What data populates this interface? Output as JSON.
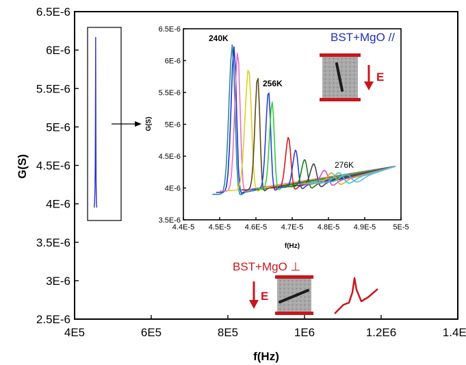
{
  "chart_data": [
    {
      "type": "line",
      "xlabel": "f(Hz)",
      "ylabel": "G(S)",
      "xlim": [
        400000,
        1400000
      ],
      "ylim": [
        2.5e-06,
        6.5e-06
      ],
      "xticks": [
        "4E5",
        "6E5",
        "8E5",
        "1E6",
        "1.2E6",
        "1.4E6"
      ],
      "yticks": [
        "2.5E-6",
        "3E-6",
        "3.5E-6",
        "4E-6",
        "4.5E-6",
        "5E-6",
        "5.5E-6",
        "6E-6",
        "6.5E-6"
      ],
      "xtick_values": [
        400000,
        600000,
        800000,
        1000000,
        1200000,
        1400000
      ],
      "ytick_values": [
        2.5e-06,
        3e-06,
        3.5e-06,
        4e-06,
        4.5e-06,
        5e-06,
        5.5e-06,
        6e-06,
        6.5e-06
      ],
      "series": [
        {
          "color": "#2b2fd0",
          "x": [
            451000,
            452000,
            453000,
            454000,
            454500,
            455000,
            455500,
            456000,
            457000,
            458000
          ],
          "y": [
            3.95e-06,
            4e-06,
            4.15e-06,
            4.5e-06,
            5.2e-06,
            6.17e-06,
            5e-06,
            4.3e-06,
            4.02e-06,
            3.95e-06
          ]
        }
      ],
      "annotations": {
        "perpendicular_sample": "BST+MgO ⊥",
        "field_label": "E"
      }
    },
    {
      "type": "line",
      "xlabel": "f(Hz)",
      "ylabel": "G(S)",
      "xlim": [
        4.4e-05,
        5e-05
      ],
      "ylim": [
        3.5e-06,
        6.5e-06
      ],
      "xticks": [
        "4.4E-5",
        "4.5E-5",
        "4.6E-5",
        "4.7E-5",
        "4.8E-5",
        "4.9E-5",
        "5E-5"
      ],
      "yticks": [
        "3.5E-6",
        "4E-6",
        "4.5E-6",
        "5E-6",
        "5.5E-6",
        "6E-6",
        "6.5E-6"
      ],
      "xtick_values": [
        4.4e-05,
        4.5e-05,
        4.6e-05,
        4.7e-05,
        4.8e-05,
        4.9e-05,
        5e-05
      ],
      "ytick_values": [
        3.5e-06,
        4e-06,
        4.5e-06,
        5e-06,
        5.5e-06,
        6e-06,
        6.5e-06
      ],
      "peak_labels": [
        "240K",
        "256K",
        "276K"
      ],
      "annotations": {
        "parallel_sample": "BST+MgO //",
        "field_label": "E"
      },
      "series": [
        {
          "color": "#2a8a8f",
          "peak_x": 4.535e-05,
          "peak_y": 6.25e-06,
          "start_x": 4.48e-05,
          "base_y": 3.9e-06
        },
        {
          "color": "#1c2fd6",
          "peak_x": 4.54e-05,
          "peak_y": 6.22e-06,
          "start_x": 4.49e-05,
          "base_y": 3.93e-06
        },
        {
          "color": "#e36cc9",
          "peak_x": 4.55e-05,
          "peak_y": 6.15e-06,
          "start_x": 4.5e-05,
          "base_y": 3.95e-06
        },
        {
          "color": "#d9d11f",
          "peak_x": 4.58e-05,
          "peak_y": 5.88e-06,
          "start_x": 4.52e-05,
          "base_y": 3.96e-06
        },
        {
          "color": "#5a4a1a",
          "peak_x": 4.605e-05,
          "peak_y": 5.76e-06,
          "start_x": 4.56e-05,
          "base_y": 3.97e-06
        },
        {
          "color": "#2a3fd6",
          "peak_x": 4.635e-05,
          "peak_y": 5.53e-06,
          "start_x": 4.59e-05,
          "base_y": 3.98e-06
        },
        {
          "color": "#2fd13a",
          "peak_x": 4.645e-05,
          "peak_y": 5.35e-06,
          "start_x": 4.6e-05,
          "base_y": 3.99e-06
        },
        {
          "color": "#d21a1a",
          "peak_x": 4.69e-05,
          "peak_y": 4.8e-06,
          "start_x": 4.64e-05,
          "base_y": 4e-06
        },
        {
          "color": "#2a3fd6",
          "peak_x": 4.71e-05,
          "peak_y": 4.6e-06,
          "start_x": 4.66e-05,
          "base_y": 4.01e-06
        },
        {
          "color": "#1a7a1a",
          "peak_x": 4.735e-05,
          "peak_y": 4.45e-06,
          "start_x": 4.68e-05,
          "base_y": 4.02e-06
        },
        {
          "color": "#444444",
          "peak_x": 4.76e-05,
          "peak_y": 4.38e-06,
          "start_x": 4.7e-05,
          "base_y": 4.04e-06
        },
        {
          "color": "#d24fd6",
          "peak_x": 4.79e-05,
          "peak_y": 4.28e-06,
          "start_x": 4.72e-05,
          "base_y": 4.06e-06
        },
        {
          "color": "#d2b21a",
          "peak_x": 4.81e-05,
          "peak_y": 4.24e-06,
          "start_x": 4.73e-05,
          "base_y": 4.07e-06
        },
        {
          "color": "#30c8d8",
          "peak_x": 4.83e-05,
          "peak_y": 4.24e-06,
          "start_x": 4.74e-05,
          "base_y": 4.08e-06
        },
        {
          "color": "#6ab0f0",
          "peak_x": 4.85e-05,
          "peak_y": 4.22e-06,
          "start_x": 4.75e-05,
          "base_y": 4.09e-06
        }
      ]
    }
  ]
}
